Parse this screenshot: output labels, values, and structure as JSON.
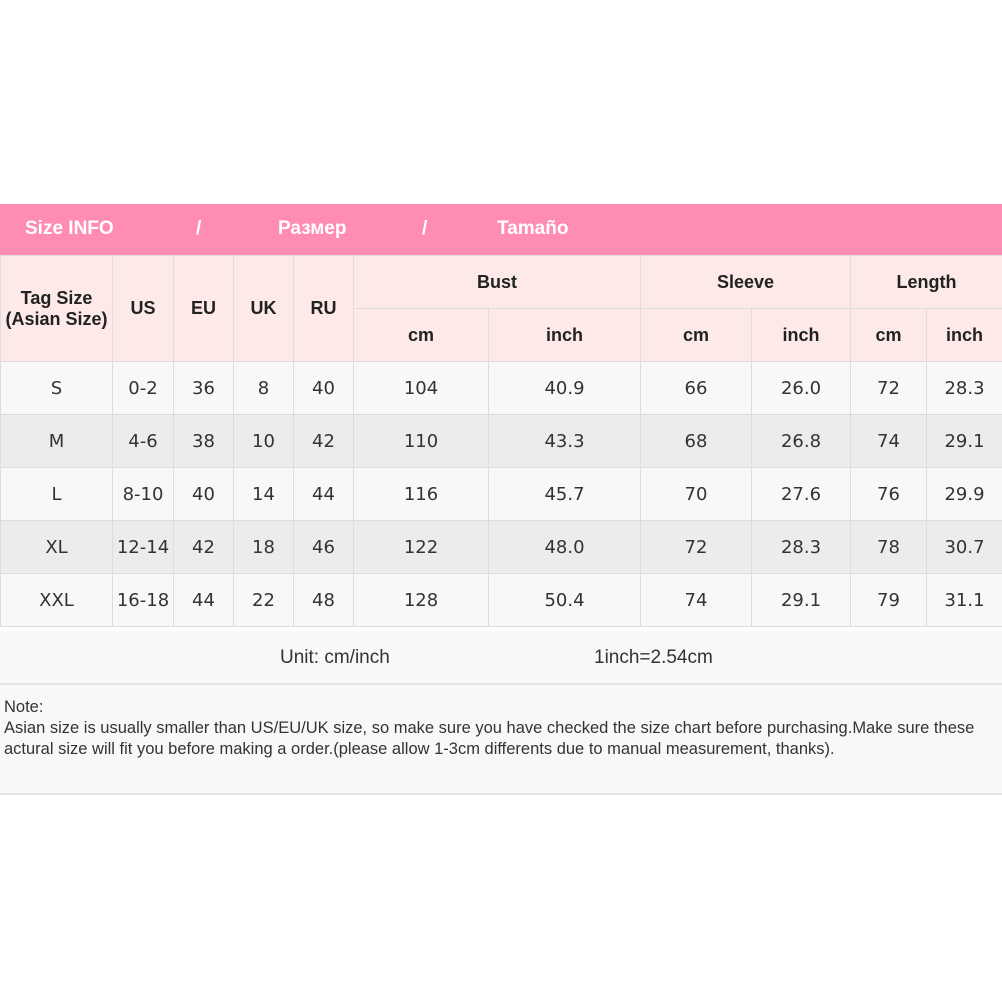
{
  "banner": {
    "title_en": "Size INFO",
    "sep1": "/",
    "title_ru": "Размер",
    "sep2": "/",
    "title_es": "Tamaño",
    "color": "#ff8cb4"
  },
  "headers": {
    "tag": "Tag Size",
    "tag_sub": "(Asian Size)",
    "us": "US",
    "eu": "EU",
    "uk": "UK",
    "ru": "RU",
    "bust": "Bust",
    "sleeve": "Sleeve",
    "length": "Length",
    "cm": "cm",
    "inch": "inch"
  },
  "rows": [
    {
      "tag": "S",
      "us": "0-2",
      "eu": "36",
      "uk": "8",
      "ru": "40",
      "bust_cm": "104",
      "bust_in": "40.9",
      "sleeve_cm": "66",
      "sleeve_in": "26.0",
      "length_cm": "72",
      "length_in": "28.3"
    },
    {
      "tag": "M",
      "us": "4-6",
      "eu": "38",
      "uk": "10",
      "ru": "42",
      "bust_cm": "110",
      "bust_in": "43.3",
      "sleeve_cm": "68",
      "sleeve_in": "26.8",
      "length_cm": "74",
      "length_in": "29.1"
    },
    {
      "tag": "L",
      "us": "8-10",
      "eu": "40",
      "uk": "14",
      "ru": "44",
      "bust_cm": "116",
      "bust_in": "45.7",
      "sleeve_cm": "70",
      "sleeve_in": "27.6",
      "length_cm": "76",
      "length_in": "29.9"
    },
    {
      "tag": "XL",
      "us": "12-14",
      "eu": "42",
      "uk": "18",
      "ru": "46",
      "bust_cm": "122",
      "bust_in": "48.0",
      "sleeve_cm": "72",
      "sleeve_in": "28.3",
      "length_cm": "78",
      "length_in": "30.7"
    },
    {
      "tag": "XXL",
      "us": "16-18",
      "eu": "44",
      "uk": "22",
      "ru": "48",
      "bust_cm": "128",
      "bust_in": "50.4",
      "sleeve_cm": "74",
      "sleeve_in": "29.1",
      "length_cm": "79",
      "length_in": "31.1"
    }
  ],
  "unit": {
    "label": "Unit: cm/inch",
    "conversion": "1inch=2.54cm"
  },
  "note": {
    "title": "Note:",
    "text": "Asian size is usually smaller than US/EU/UK size, so make sure you have checked the size chart before purchasing.Make sure these actural size will fit you before making a order.(please allow 1-3cm differents due to manual measurement, thanks)."
  }
}
